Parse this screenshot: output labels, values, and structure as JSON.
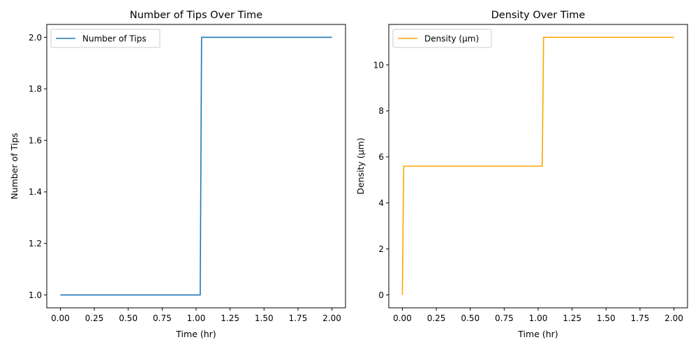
{
  "chart_data": [
    {
      "type": "line",
      "title": "Number of Tips Over Time",
      "xlabel": "Time (hr)",
      "ylabel": "Number of Tips",
      "xlim": [
        -0.1,
        2.1
      ],
      "ylim": [
        0.95,
        2.05
      ],
      "xticks": [
        0.0,
        0.25,
        0.5,
        0.75,
        1.0,
        1.25,
        1.5,
        1.75,
        2.0
      ],
      "xtick_labels": [
        "0.00",
        "0.25",
        "0.50",
        "0.75",
        "1.00",
        "1.25",
        "1.50",
        "1.75",
        "2.00"
      ],
      "yticks": [
        1.0,
        1.2,
        1.4,
        1.6,
        1.8,
        2.0
      ],
      "ytick_labels": [
        "1.0",
        "1.2",
        "1.4",
        "1.6",
        "1.8",
        "2.0"
      ],
      "grid": false,
      "legend_position": "top-left",
      "series": [
        {
          "name": "Number of Tips",
          "color": "#1f77b4",
          "x": [
            0.0,
            1.03,
            1.04,
            2.0
          ],
          "y": [
            1.0,
            1.0,
            2.0,
            2.0
          ]
        }
      ]
    },
    {
      "type": "line",
      "title": "Density Over Time",
      "xlabel": "Time (hr)",
      "ylabel": "Density (µm)",
      "xlim": [
        -0.1,
        2.1
      ],
      "ylim": [
        -0.56,
        11.76
      ],
      "xticks": [
        0.0,
        0.25,
        0.5,
        0.75,
        1.0,
        1.25,
        1.5,
        1.75,
        2.0
      ],
      "xtick_labels": [
        "0.00",
        "0.25",
        "0.50",
        "0.75",
        "1.00",
        "1.25",
        "1.50",
        "1.75",
        "2.00"
      ],
      "yticks": [
        0,
        2,
        4,
        6,
        8,
        10
      ],
      "ytick_labels": [
        "0",
        "2",
        "4",
        "6",
        "8",
        "10"
      ],
      "grid": false,
      "legend_position": "top-left",
      "series": [
        {
          "name": "Density (µm)",
          "color": "#ffa500",
          "x": [
            0.0,
            0.01,
            1.03,
            1.04,
            2.0
          ],
          "y": [
            0.0,
            5.6,
            5.6,
            11.2,
            11.2
          ]
        }
      ]
    }
  ]
}
